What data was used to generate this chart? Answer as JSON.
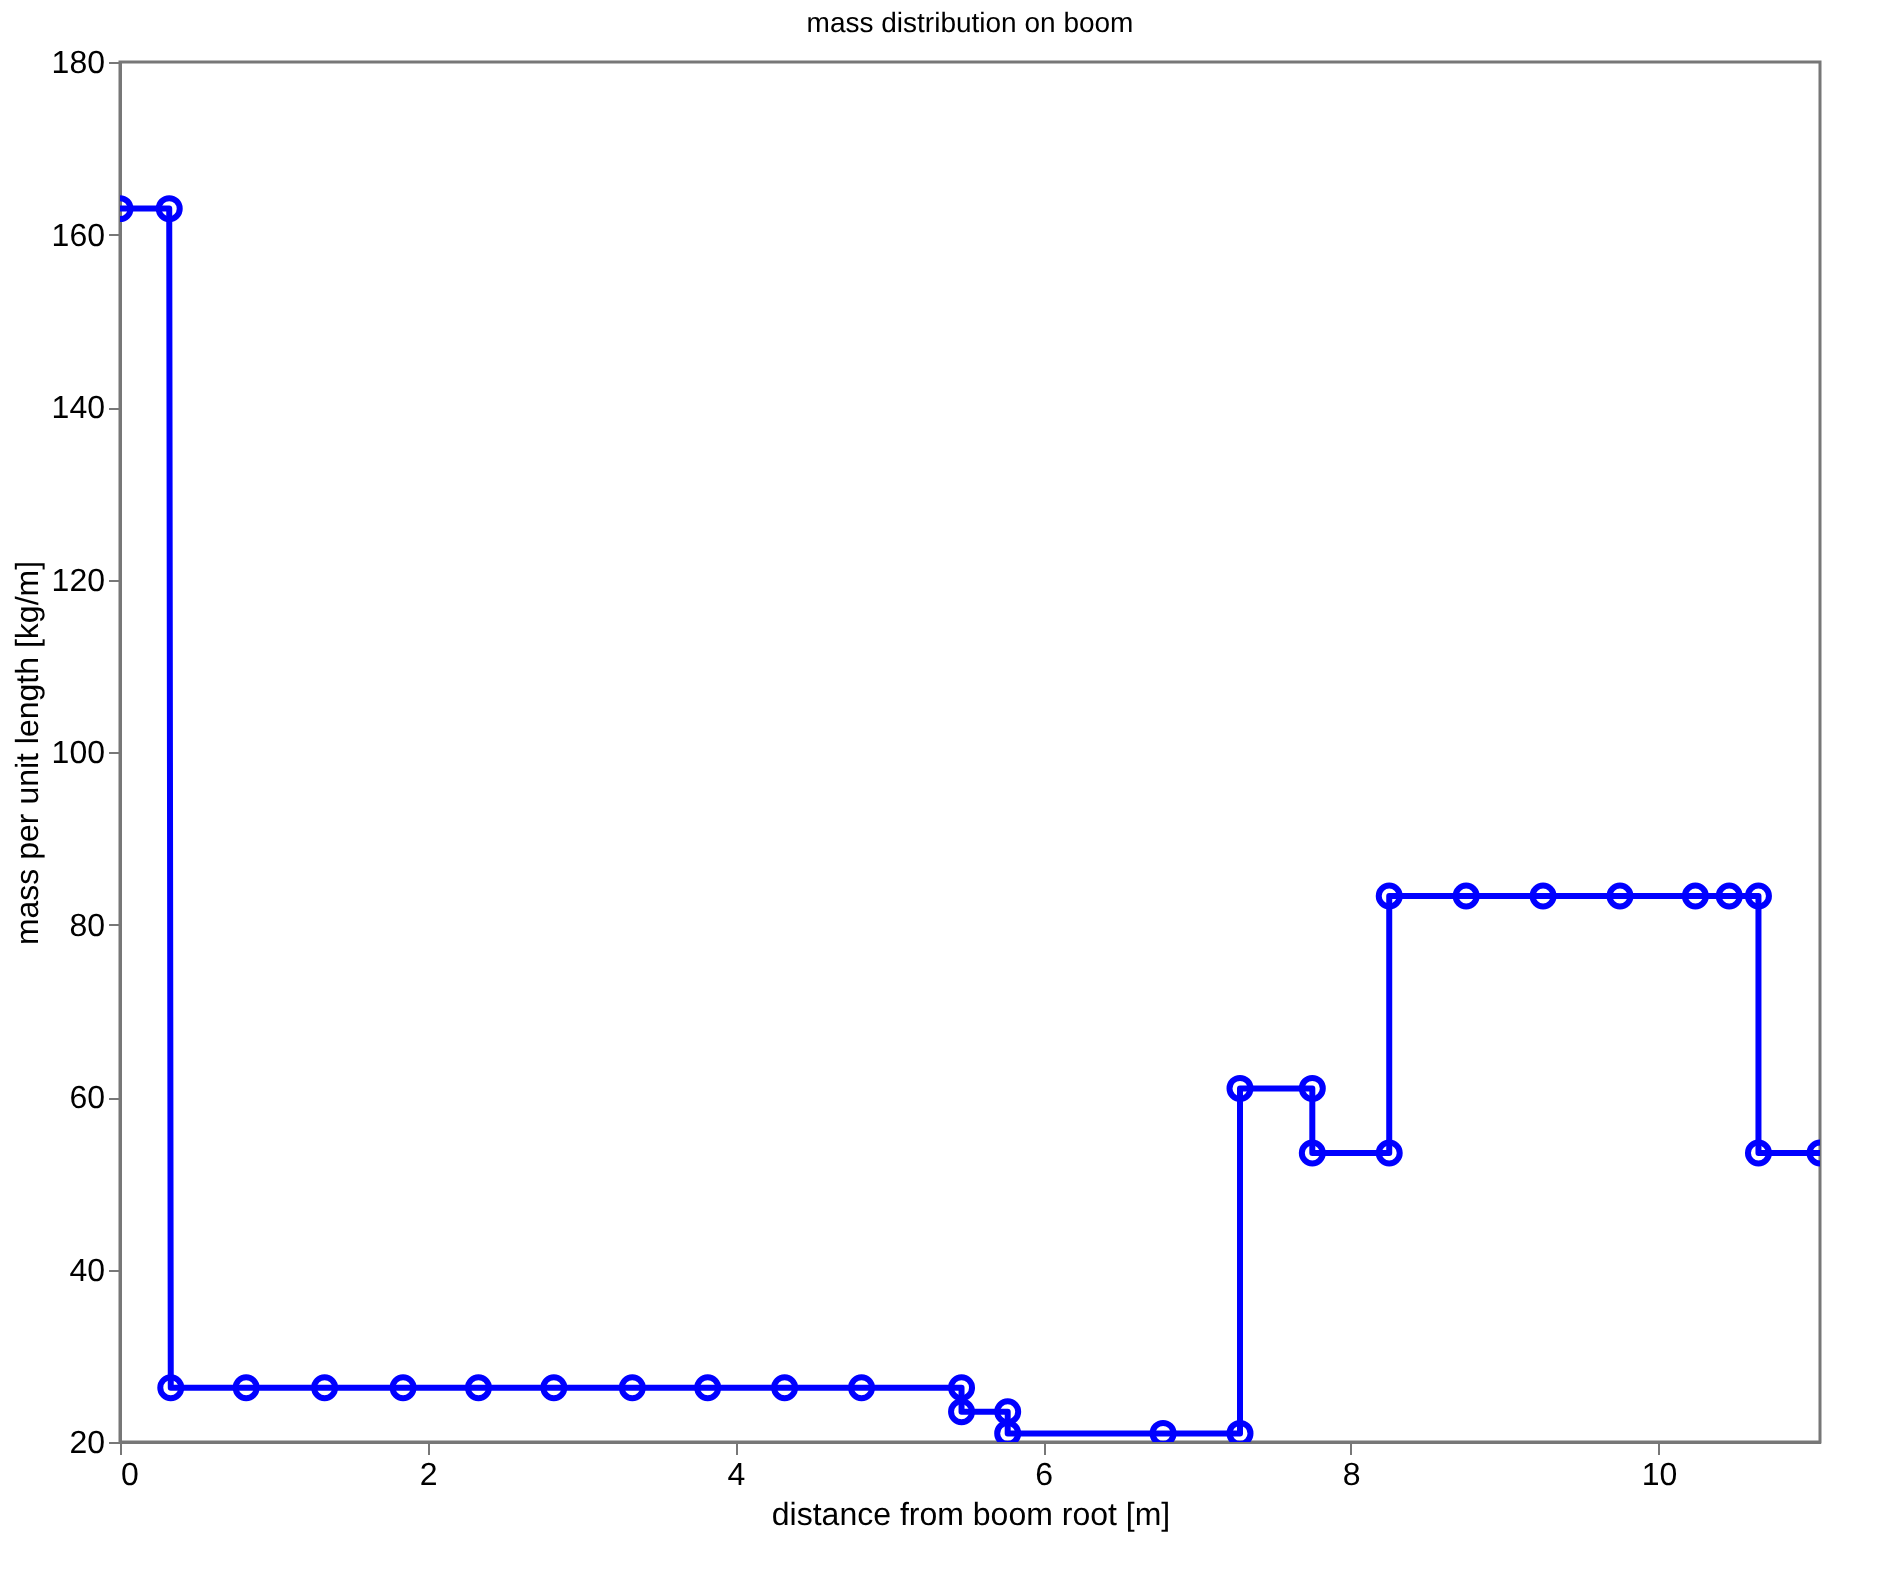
{
  "chart_data": {
    "type": "line",
    "title": "mass distribution on boom",
    "xlabel": "distance from boom root [m]",
    "ylabel": "mass per unit length [kg/m]",
    "x": [
      0,
      0.32,
      0.33,
      0.82,
      1.33,
      1.84,
      2.33,
      2.82,
      3.33,
      3.82,
      4.32,
      4.82,
      5.47,
      5.47,
      5.77,
      5.77,
      6.78,
      7.28,
      7.28,
      7.75,
      7.75,
      8.25,
      8.25,
      8.75,
      9.25,
      9.75,
      10.24,
      10.46,
      10.65,
      10.65,
      11.05
    ],
    "series": [
      {
        "color": "#0000ff",
        "values": [
          163,
          163,
          26.3,
          26.3,
          26.3,
          26.3,
          26.3,
          26.3,
          26.3,
          26.3,
          26.3,
          26.3,
          26.3,
          23.5,
          23.5,
          21,
          21,
          21,
          61,
          61,
          53.5,
          53.5,
          83.3,
          83.3,
          83.3,
          83.3,
          83.3,
          83.3,
          83.3,
          53.5,
          53.5
        ]
      }
    ],
    "xlim": [
      0,
      11.05
    ],
    "xticks": [
      0,
      2,
      4,
      6,
      8,
      10
    ],
    "ylim": [
      20,
      180
    ],
    "yticks": [
      20,
      40,
      60,
      80,
      100,
      120,
      140,
      160,
      180
    ],
    "marker": "circle",
    "line_style": "solid",
    "grid": false
  }
}
